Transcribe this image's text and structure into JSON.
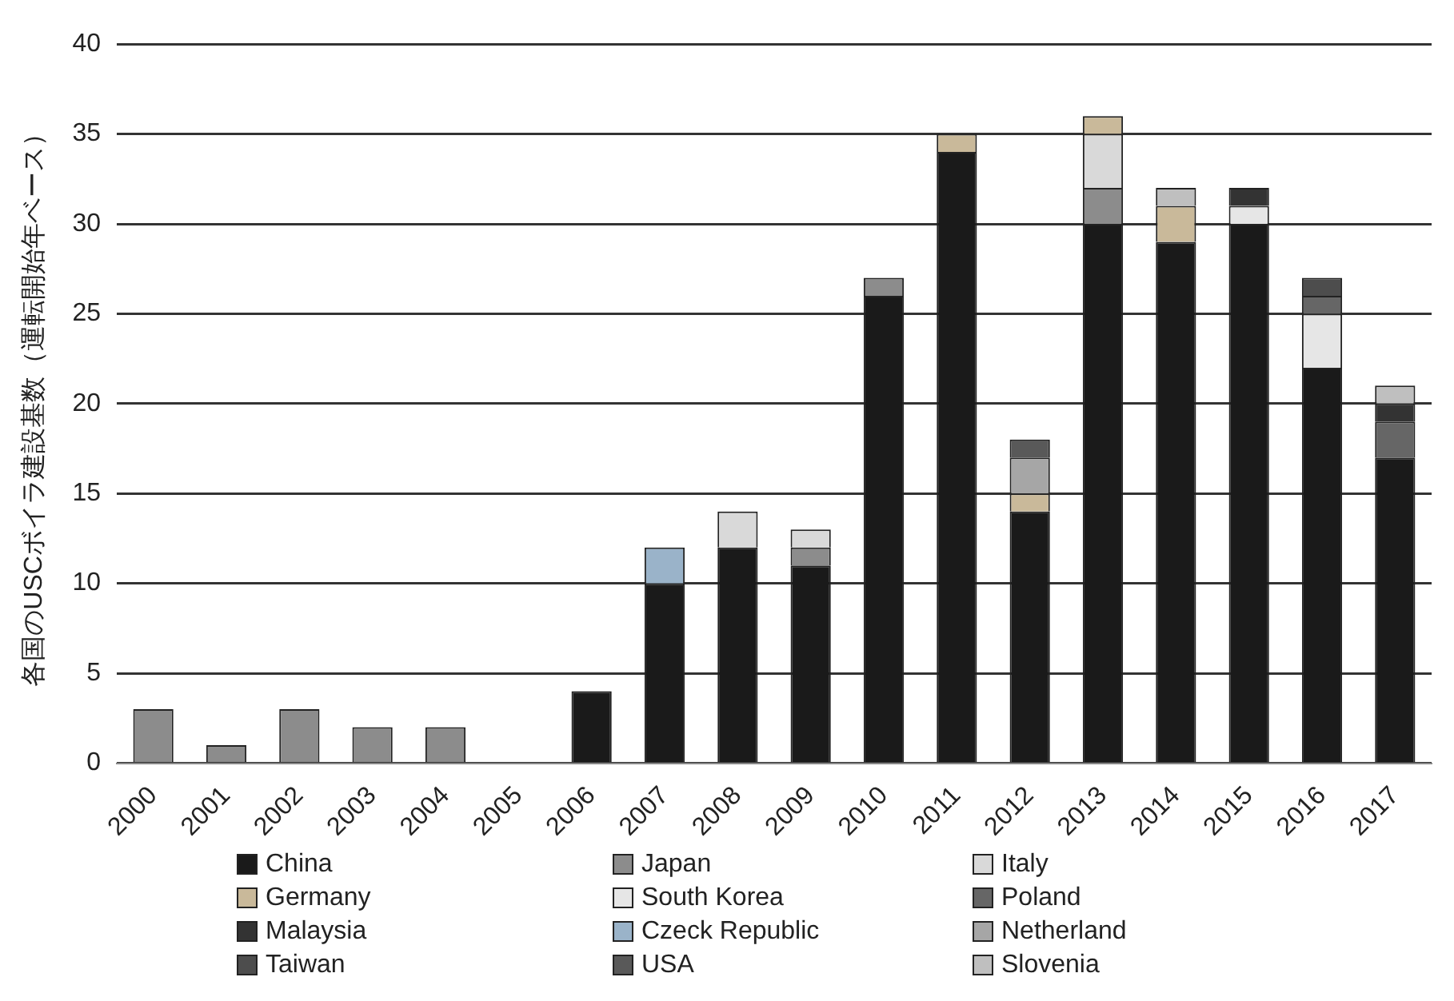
{
  "chart_data": {
    "type": "bar",
    "stacked": true,
    "ylabel": "各国のUSCボイラ建設基数（運転開始年ベース）",
    "categories": [
      "2000",
      "2001",
      "2002",
      "2003",
      "2004",
      "2005",
      "2006",
      "2007",
      "2008",
      "2009",
      "2010",
      "2011",
      "2012",
      "2013",
      "2014",
      "2015",
      "2016",
      "2017"
    ],
    "ylim": [
      0,
      40
    ],
    "yticks": [
      0,
      5,
      10,
      15,
      20,
      25,
      30,
      35,
      40
    ],
    "grid": "y",
    "legend": "bottom",
    "series": [
      {
        "name": "China",
        "color": "#1a1a1a",
        "values": [
          0,
          0,
          0,
          0,
          0,
          0,
          4,
          10,
          12,
          11,
          26,
          34,
          14,
          30,
          29,
          30,
          22,
          17
        ]
      },
      {
        "name": "Japan",
        "color": "#8c8c8c",
        "values": [
          3,
          1,
          3,
          2,
          2,
          0,
          0,
          0,
          0,
          1,
          1,
          0,
          0,
          2,
          0,
          0,
          0,
          0
        ]
      },
      {
        "name": "Italy",
        "color": "#d9d9d9",
        "values": [
          0,
          0,
          0,
          0,
          0,
          0,
          0,
          0,
          2,
          1,
          0,
          0,
          0,
          3,
          0,
          0,
          0,
          0
        ]
      },
      {
        "name": "Germany",
        "color": "#c9b99a",
        "values": [
          0,
          0,
          0,
          0,
          0,
          0,
          0,
          0,
          0,
          0,
          0,
          1,
          1,
          1,
          2,
          0,
          0,
          0
        ]
      },
      {
        "name": "South Korea",
        "color": "#e6e6e6",
        "values": [
          0,
          0,
          0,
          0,
          0,
          0,
          0,
          0,
          0,
          0,
          0,
          0,
          0,
          0,
          0,
          1,
          3,
          0
        ]
      },
      {
        "name": "Poland",
        "color": "#666666",
        "values": [
          0,
          0,
          0,
          0,
          0,
          0,
          0,
          0,
          0,
          0,
          0,
          0,
          0,
          0,
          0,
          0,
          1,
          2
        ]
      },
      {
        "name": "Malaysia",
        "color": "#333333",
        "values": [
          0,
          0,
          0,
          0,
          0,
          0,
          0,
          0,
          0,
          0,
          0,
          0,
          0,
          0,
          0,
          1,
          0,
          1
        ]
      },
      {
        "name": "Czeck Republic",
        "color": "#9ab3c9",
        "values": [
          0,
          0,
          0,
          0,
          0,
          0,
          0,
          2,
          0,
          0,
          0,
          0,
          0,
          0,
          0,
          0,
          0,
          0
        ]
      },
      {
        "name": "Netherland",
        "color": "#a6a6a6",
        "values": [
          0,
          0,
          0,
          0,
          0,
          0,
          0,
          0,
          0,
          0,
          0,
          0,
          2,
          0,
          0,
          0,
          0,
          0
        ]
      },
      {
        "name": "Taiwan",
        "color": "#4d4d4d",
        "values": [
          0,
          0,
          0,
          0,
          0,
          0,
          0,
          0,
          0,
          0,
          0,
          0,
          0,
          0,
          0,
          0,
          1,
          0
        ]
      },
      {
        "name": "USA",
        "color": "#595959",
        "values": [
          0,
          0,
          0,
          0,
          0,
          0,
          0,
          0,
          0,
          0,
          0,
          0,
          1,
          0,
          0,
          0,
          0,
          0
        ]
      },
      {
        "name": "Slovenia",
        "color": "#bfbfbf",
        "values": [
          0,
          0,
          0,
          0,
          0,
          0,
          0,
          0,
          0,
          0,
          0,
          0,
          0,
          0,
          1,
          0,
          0,
          1
        ]
      }
    ]
  }
}
